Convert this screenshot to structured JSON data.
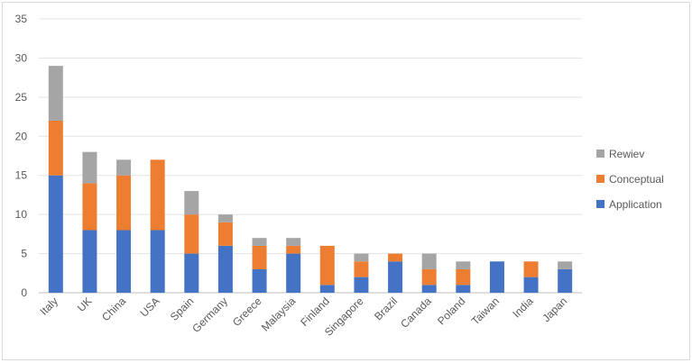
{
  "chart_data": {
    "type": "bar",
    "stacked": true,
    "title": "",
    "xlabel": "",
    "ylabel": "",
    "ylim": [
      0,
      35
    ],
    "yticks": [
      0,
      5,
      10,
      15,
      20,
      25,
      30,
      35
    ],
    "grid": true,
    "legend_position": "right",
    "categories": [
      "Italy",
      "UK",
      "China",
      "USA",
      "Spain",
      "Germany",
      "Greece",
      "Malaysia",
      "Finland",
      "Singapore",
      "Brazil",
      "Canada",
      "Poland",
      "Taiwan",
      "India",
      "Japan"
    ],
    "series": [
      {
        "name": "Application",
        "color": "#4472c4",
        "values": [
          15,
          8,
          8,
          8,
          5,
          6,
          3,
          5,
          1,
          2,
          4,
          1,
          1,
          4,
          2,
          3
        ]
      },
      {
        "name": "Conceptual",
        "color": "#ed7d31",
        "values": [
          7,
          6,
          7,
          9,
          5,
          3,
          3,
          1,
          5,
          2,
          1,
          2,
          2,
          0,
          2,
          0
        ]
      },
      {
        "name": "Rewiev",
        "color": "#a5a5a5",
        "values": [
          7,
          4,
          2,
          0,
          3,
          1,
          1,
          1,
          0,
          1,
          0,
          2,
          1,
          0,
          0,
          1
        ]
      }
    ]
  }
}
